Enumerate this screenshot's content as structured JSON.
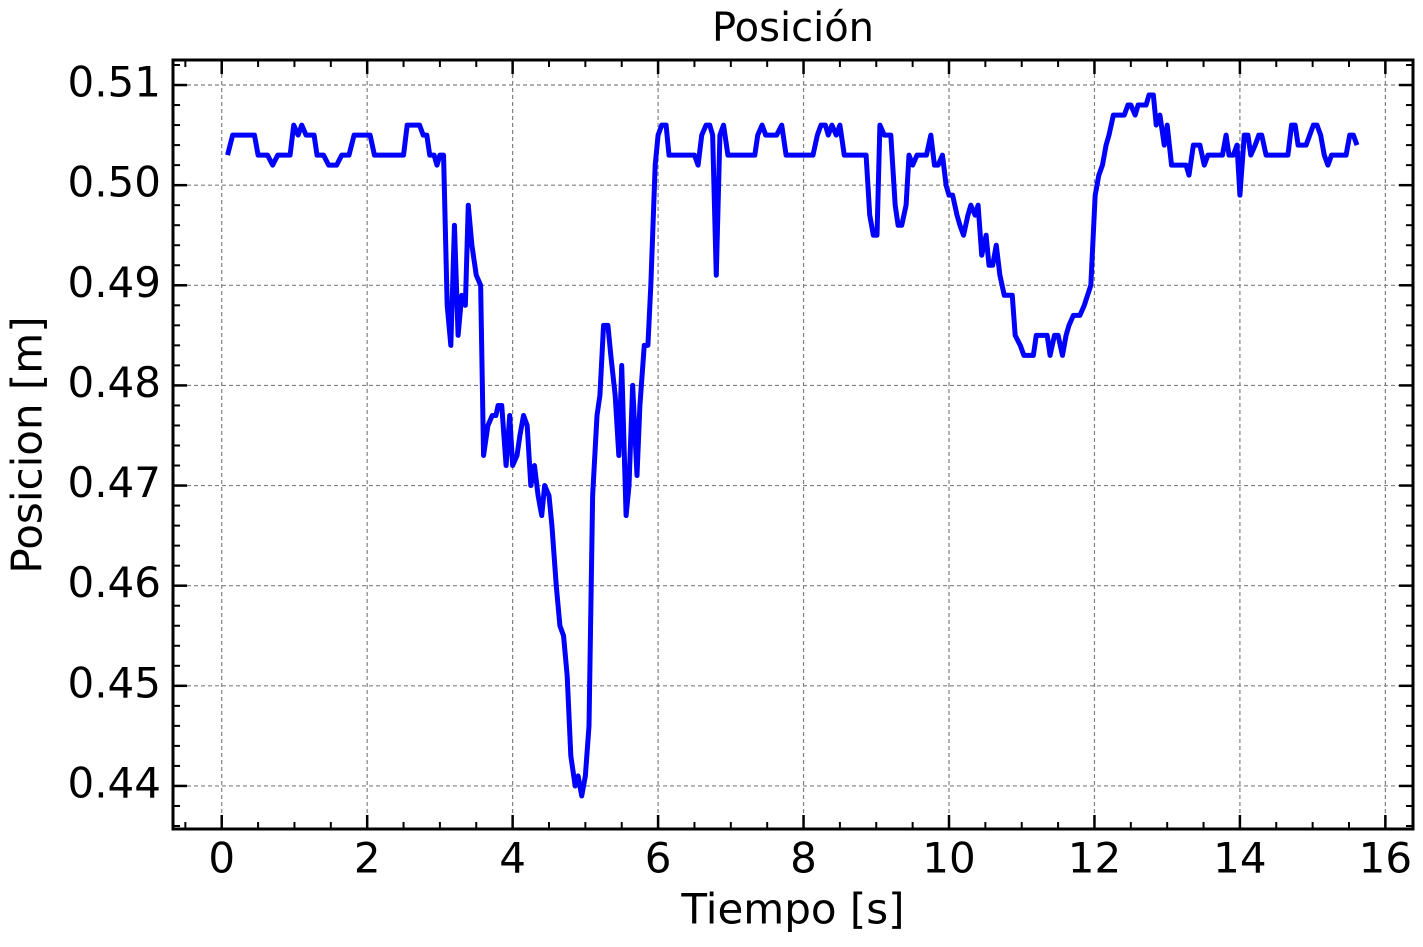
{
  "chart_data": {
    "type": "line",
    "title": "Posición",
    "x_label": "Tiempo [s]",
    "y_label": "Posicion [m]",
    "xlim": [
      -0.67,
      16.38
    ],
    "ylim": [
      0.4357,
      0.5125
    ],
    "xticks": [
      0,
      2,
      4,
      6,
      8,
      10,
      12,
      14,
      16
    ],
    "yticks": [
      0.44,
      0.45,
      0.46,
      0.47,
      0.48,
      0.49,
      {
        "value": 0.5,
        "label": "0.50"
      },
      0.51
    ],
    "x_minor_divisions": 4,
    "y_minor_divisions": 5,
    "grid": true,
    "series": [
      {
        "color": "#0000ff",
        "x": [
          0.08,
          0.15,
          0.45,
          0.5,
          0.63,
          0.7,
          0.77,
          0.94,
          0.99,
          1.05,
          1.1,
          1.16,
          1.27,
          1.31,
          1.4,
          1.47,
          1.58,
          1.65,
          1.75,
          1.82,
          2.04,
          2.1,
          2.5,
          2.55,
          2.72,
          2.77,
          2.82,
          2.86,
          2.92,
          2.96,
          3.0,
          3.05,
          3.1,
          3.15,
          3.2,
          3.25,
          3.3,
          3.35,
          3.39,
          3.44,
          3.5,
          3.56,
          3.6,
          3.66,
          3.72,
          3.77,
          3.8,
          3.85,
          3.91,
          3.96,
          4.0,
          4.06,
          4.1,
          4.15,
          4.2,
          4.25,
          4.3,
          4.35,
          4.4,
          4.44,
          4.5,
          4.54,
          4.6,
          4.65,
          4.7,
          4.75,
          4.8,
          4.86,
          4.9,
          4.95,
          5.0,
          5.05,
          5.1,
          5.16,
          5.2,
          5.25,
          5.31,
          5.35,
          5.41,
          5.46,
          5.5,
          5.56,
          5.6,
          5.65,
          5.71,
          5.75,
          5.81,
          5.86,
          5.9,
          5.96,
          6.0,
          6.05,
          6.11,
          6.15,
          6.5,
          6.55,
          6.6,
          6.66,
          6.71,
          6.75,
          6.8,
          6.85,
          6.9,
          6.96,
          7.33,
          7.37,
          7.43,
          7.48,
          7.63,
          7.7,
          7.76,
          8.13,
          8.19,
          8.24,
          8.3,
          8.34,
          8.39,
          8.45,
          8.5,
          8.56,
          8.86,
          8.91,
          8.96,
          9.01,
          9.05,
          9.11,
          9.2,
          9.26,
          9.3,
          9.35,
          9.41,
          9.45,
          9.5,
          9.56,
          9.69,
          9.75,
          9.8,
          9.85,
          9.91,
          9.96,
          10.0,
          10.05,
          10.11,
          10.15,
          10.2,
          10.26,
          10.3,
          10.36,
          10.4,
          10.45,
          10.51,
          10.55,
          10.6,
          10.65,
          10.7,
          10.76,
          10.87,
          10.91,
          10.98,
          11.03,
          11.16,
          11.2,
          11.35,
          11.39,
          11.45,
          11.5,
          11.56,
          11.61,
          11.65,
          11.71,
          11.8,
          11.86,
          11.95,
          12.01,
          12.06,
          12.11,
          12.16,
          12.2,
          12.26,
          12.41,
          12.46,
          12.5,
          12.56,
          12.6,
          12.71,
          12.75,
          12.81,
          12.85,
          12.9,
          12.96,
          13.0,
          13.06,
          13.26,
          13.3,
          13.36,
          13.45,
          13.51,
          13.56,
          13.76,
          13.81,
          13.85,
          13.91,
          13.96,
          14.0,
          14.06,
          14.11,
          14.15,
          14.21,
          14.26,
          14.3,
          14.36,
          14.66,
          14.71,
          14.76,
          14.8,
          14.91,
          15.01,
          15.06,
          15.11,
          15.16,
          15.21,
          15.26,
          15.46,
          15.51,
          15.56,
          15.61
        ],
        "values": [
          0.503,
          0.505,
          0.505,
          0.503,
          0.503,
          0.502,
          0.503,
          0.503,
          0.506,
          0.505,
          0.506,
          0.505,
          0.505,
          0.503,
          0.503,
          0.502,
          0.502,
          0.503,
          0.503,
          0.505,
          0.505,
          0.503,
          0.503,
          0.506,
          0.506,
          0.505,
          0.505,
          0.503,
          0.503,
          0.502,
          0.503,
          0.503,
          0.488,
          0.484,
          0.496,
          0.485,
          0.489,
          0.488,
          0.498,
          0.494,
          0.491,
          0.49,
          0.473,
          0.476,
          0.477,
          0.477,
          0.478,
          0.478,
          0.472,
          0.477,
          0.472,
          0.473,
          0.475,
          0.477,
          0.476,
          0.47,
          0.472,
          0.469,
          0.467,
          0.47,
          0.469,
          0.466,
          0.46,
          0.456,
          0.455,
          0.451,
          0.443,
          0.44,
          0.441,
          0.439,
          0.441,
          0.446,
          0.469,
          0.477,
          0.479,
          0.486,
          0.486,
          0.483,
          0.479,
          0.473,
          0.482,
          0.467,
          0.47,
          0.48,
          0.471,
          0.478,
          0.484,
          0.484,
          0.49,
          0.502,
          0.505,
          0.506,
          0.506,
          0.503,
          0.503,
          0.502,
          0.505,
          0.506,
          0.506,
          0.505,
          0.491,
          0.505,
          0.506,
          0.503,
          0.503,
          0.505,
          0.506,
          0.505,
          0.505,
          0.506,
          0.503,
          0.503,
          0.505,
          0.506,
          0.506,
          0.505,
          0.506,
          0.505,
          0.506,
          0.503,
          0.503,
          0.497,
          0.495,
          0.495,
          0.506,
          0.505,
          0.505,
          0.498,
          0.496,
          0.496,
          0.498,
          0.503,
          0.502,
          0.503,
          0.503,
          0.505,
          0.502,
          0.502,
          0.503,
          0.5,
          0.499,
          0.499,
          0.497,
          0.496,
          0.495,
          0.497,
          0.498,
          0.497,
          0.498,
          0.493,
          0.495,
          0.492,
          0.492,
          0.494,
          0.491,
          0.489,
          0.489,
          0.485,
          0.484,
          0.483,
          0.483,
          0.485,
          0.485,
          0.483,
          0.485,
          0.485,
          0.483,
          0.485,
          0.486,
          0.487,
          0.487,
          0.488,
          0.49,
          0.499,
          0.501,
          0.502,
          0.504,
          0.505,
          0.507,
          0.507,
          0.508,
          0.508,
          0.507,
          0.508,
          0.508,
          0.509,
          0.509,
          0.506,
          0.507,
          0.504,
          0.506,
          0.502,
          0.502,
          0.501,
          0.504,
          0.504,
          0.502,
          0.503,
          0.503,
          0.505,
          0.503,
          0.503,
          0.504,
          0.499,
          0.505,
          0.505,
          0.503,
          0.504,
          0.505,
          0.505,
          0.503,
          0.503,
          0.506,
          0.506,
          0.504,
          0.504,
          0.506,
          0.506,
          0.505,
          0.503,
          0.502,
          0.503,
          0.503,
          0.505,
          0.505,
          0.504
        ]
      }
    ]
  }
}
